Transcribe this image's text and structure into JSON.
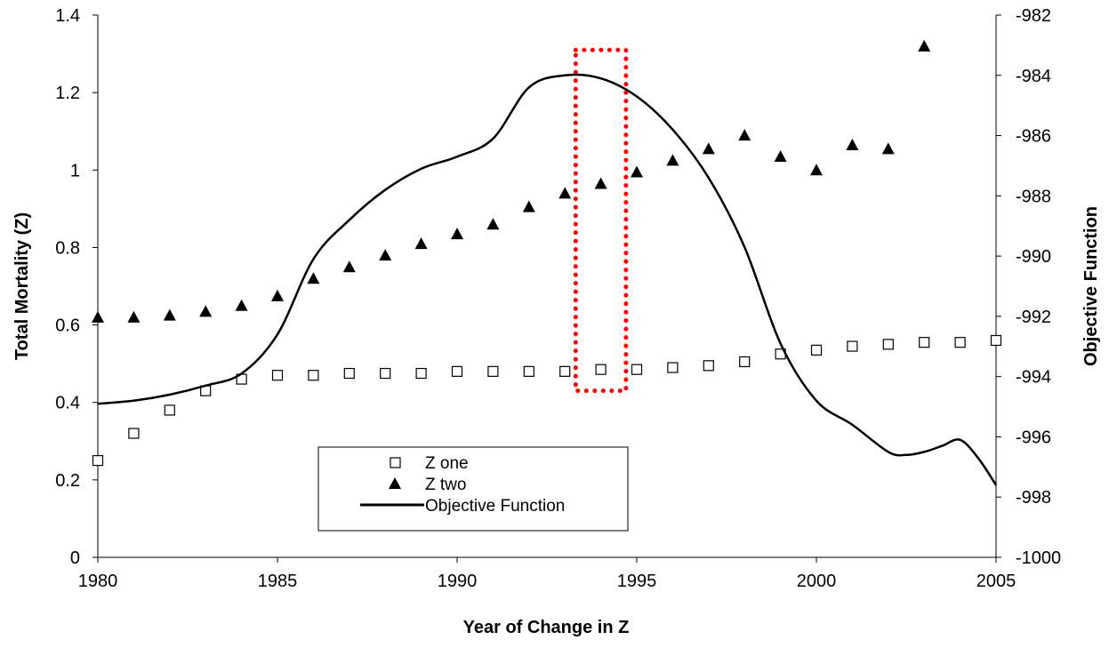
{
  "chart_data": {
    "type": "scatter",
    "xlabel": "Year of Change in Z",
    "ylabel": "Total Mortality (Z)",
    "y2label": "Objective Function",
    "xlim": [
      1980,
      2005
    ],
    "ylim": [
      0,
      1.4
    ],
    "y2lim": [
      -1000,
      -982
    ],
    "x_ticks": [
      "1980",
      "1985",
      "1990",
      "1995",
      "2000",
      "2005"
    ],
    "y_ticks": [
      "0",
      "0.2",
      "0.4",
      "0.6",
      "0.8",
      "1",
      "1.2",
      "1.4"
    ],
    "y2_ticks": [
      "-1000",
      "-998",
      "-996",
      "-994",
      "-992",
      "-990",
      "-988",
      "-986",
      "-984",
      "-982"
    ],
    "grid": false,
    "legend_position": "bottom-center",
    "series": [
      {
        "name": "Z one",
        "axis": "left",
        "marker": "open-square",
        "x": [
          1980,
          1981,
          1982,
          1983,
          1984,
          1985,
          1986,
          1987,
          1988,
          1989,
          1990,
          1991,
          1992,
          1993,
          1994,
          1995,
          1996,
          1997,
          1998,
          1999,
          2000,
          2001,
          2002,
          2003,
          2004,
          2005
        ],
        "y": [
          0.25,
          0.32,
          0.38,
          0.43,
          0.46,
          0.47,
          0.47,
          0.475,
          0.475,
          0.475,
          0.48,
          0.48,
          0.48,
          0.48,
          0.485,
          0.485,
          0.49,
          0.495,
          0.505,
          0.525,
          0.535,
          0.545,
          0.55,
          0.555,
          0.555,
          0.56
        ]
      },
      {
        "name": "Z two",
        "axis": "left",
        "marker": "filled-triangle",
        "x": [
          1980,
          1981,
          1982,
          1983,
          1984,
          1985,
          1986,
          1987,
          1988,
          1989,
          1990,
          1991,
          1992,
          1993,
          1994,
          1995,
          1996,
          1997,
          1998,
          1999,
          2000,
          2001,
          2002,
          2003
        ],
        "y": [
          0.62,
          0.62,
          0.625,
          0.635,
          0.65,
          0.675,
          0.72,
          0.75,
          0.78,
          0.81,
          0.835,
          0.86,
          0.905,
          0.94,
          0.965,
          0.995,
          1.025,
          1.055,
          1.09,
          1.035,
          1.0,
          1.065,
          1.055,
          1.32
        ]
      },
      {
        "name": "Objective Function",
        "axis": "right",
        "marker": "line",
        "x": [
          1980,
          1981,
          1982,
          1983,
          1984,
          1985,
          1986,
          1987,
          1988,
          1989,
          1990,
          1991,
          1992,
          1993,
          1994,
          1995,
          1996,
          1997,
          1998,
          1999,
          2000,
          2001,
          2002,
          2002.5,
          2003,
          2003.5,
          2004,
          2004.5,
          2005
        ],
        "y": [
          -994.9,
          -994.8,
          -994.6,
          -994.3,
          -993.9,
          -992.6,
          -990.1,
          -988.8,
          -987.8,
          -987.1,
          -986.7,
          -986.1,
          -984.4,
          -984.0,
          -984.1,
          -984.7,
          -985.8,
          -987.4,
          -989.7,
          -992.9,
          -994.8,
          -995.6,
          -996.5,
          -996.6,
          -996.5,
          -996.3,
          -996.1,
          -996.7,
          -997.6
        ]
      }
    ],
    "annotations": [
      {
        "type": "dotted-rectangle",
        "color": "#ff0000",
        "x_range": [
          1993.3,
          1994.7
        ],
        "y_range": [
          0.43,
          1.31
        ]
      }
    ]
  }
}
